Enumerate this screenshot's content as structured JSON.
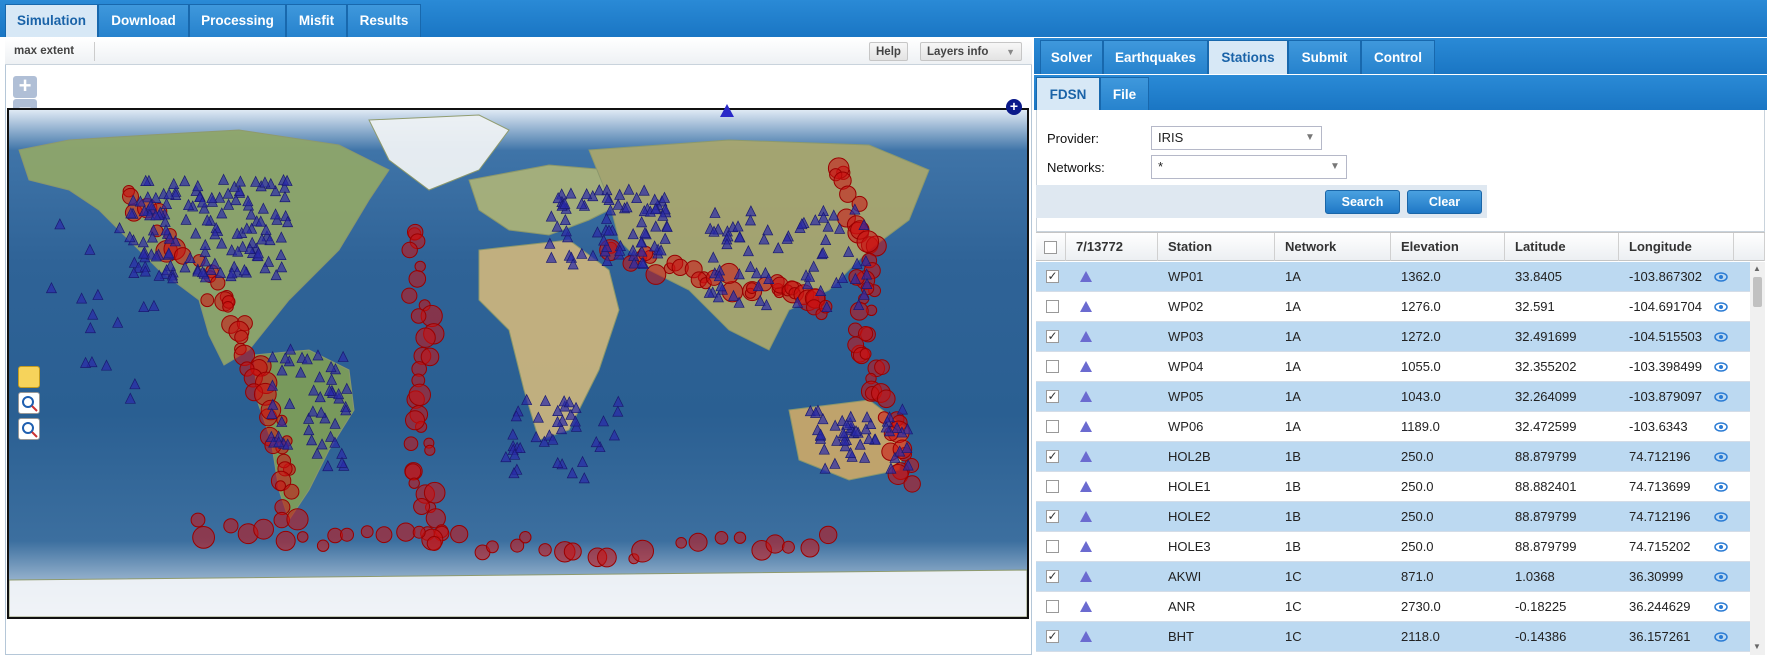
{
  "top_tabs": [
    {
      "label": "Simulation",
      "active": true
    },
    {
      "label": "Download",
      "active": false
    },
    {
      "label": "Processing",
      "active": false
    },
    {
      "label": "Misfit",
      "active": false
    },
    {
      "label": "Results",
      "active": false
    }
  ],
  "map_toolbar": {
    "max_extent": "max extent",
    "help": "Help",
    "layers_info": "Layers info"
  },
  "map": {
    "zoom_in": "+",
    "zoom_out": "−",
    "station_color": "#2a2aa8",
    "event_color": "#cc1010"
  },
  "sub_tabs": [
    {
      "label": "Solver",
      "active": false
    },
    {
      "label": "Earthquakes",
      "active": false
    },
    {
      "label": "Stations",
      "active": true
    },
    {
      "label": "Submit",
      "active": false
    },
    {
      "label": "Control",
      "active": false
    }
  ],
  "source_tabs": [
    {
      "label": "FDSN",
      "active": true
    },
    {
      "label": "File",
      "active": false
    }
  ],
  "form": {
    "provider_label": "Provider:",
    "provider_value": "IRIS",
    "networks_label": "Networks:",
    "networks_value": "*",
    "search_label": "Search",
    "clear_label": "Clear"
  },
  "grid": {
    "count": "7/13772",
    "columns": [
      "Station",
      "Network",
      "Elevation",
      "Latitude",
      "Longitude"
    ],
    "rows": [
      {
        "checked": true,
        "station": "WP01",
        "network": "1A",
        "elevation": "1362.0",
        "latitude": "33.8405",
        "longitude": "-103.867302"
      },
      {
        "checked": false,
        "station": "WP02",
        "network": "1A",
        "elevation": "1276.0",
        "latitude": "32.591",
        "longitude": "-104.691704"
      },
      {
        "checked": true,
        "station": "WP03",
        "network": "1A",
        "elevation": "1272.0",
        "latitude": "32.491699",
        "longitude": "-104.515503"
      },
      {
        "checked": false,
        "station": "WP04",
        "network": "1A",
        "elevation": "1055.0",
        "latitude": "32.355202",
        "longitude": "-103.398499"
      },
      {
        "checked": true,
        "station": "WP05",
        "network": "1A",
        "elevation": "1043.0",
        "latitude": "32.264099",
        "longitude": "-103.879097"
      },
      {
        "checked": false,
        "station": "WP06",
        "network": "1A",
        "elevation": "1189.0",
        "latitude": "32.472599",
        "longitude": "-103.6343"
      },
      {
        "checked": true,
        "station": "HOL2B",
        "network": "1B",
        "elevation": "250.0",
        "latitude": "88.879799",
        "longitude": "74.712196"
      },
      {
        "checked": false,
        "station": "HOLE1",
        "network": "1B",
        "elevation": "250.0",
        "latitude": "88.882401",
        "longitude": "74.713699"
      },
      {
        "checked": true,
        "station": "HOLE2",
        "network": "1B",
        "elevation": "250.0",
        "latitude": "88.879799",
        "longitude": "74.712196"
      },
      {
        "checked": false,
        "station": "HOLE3",
        "network": "1B",
        "elevation": "250.0",
        "latitude": "88.879799",
        "longitude": "74.715202"
      },
      {
        "checked": true,
        "station": "AKWI",
        "network": "1C",
        "elevation": "871.0",
        "latitude": "1.0368",
        "longitude": "36.30999"
      },
      {
        "checked": false,
        "station": "ANR",
        "network": "1C",
        "elevation": "2730.0",
        "latitude": "-0.18225",
        "longitude": "36.244629"
      },
      {
        "checked": true,
        "station": "BHT",
        "network": "1C",
        "elevation": "2118.0",
        "latitude": "-0.14386",
        "longitude": "36.157261"
      }
    ]
  }
}
